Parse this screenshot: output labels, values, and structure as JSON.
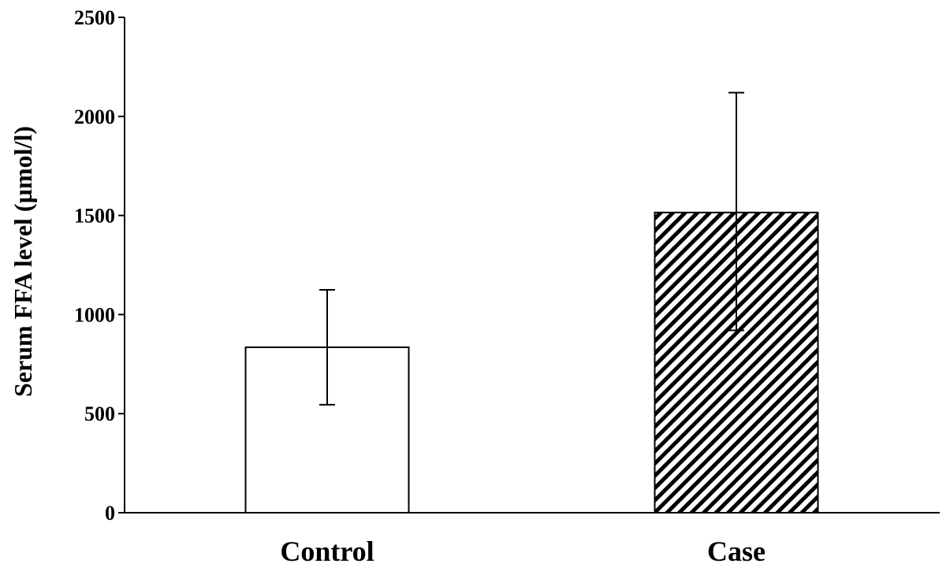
{
  "chart_data": {
    "type": "bar",
    "categories": [
      "Control",
      "Case"
    ],
    "values": [
      835,
      1515
    ],
    "error_bars": [
      {
        "lower": 545,
        "upper": 1125
      },
      {
        "lower": 920,
        "upper": 2120
      }
    ],
    "bar_fills": [
      "none",
      "diagonal-hatch"
    ],
    "title": "",
    "xlabel": "",
    "ylabel": "Serum FFA level (µmol/l)",
    "ylim": [
      0,
      2500
    ],
    "yticks": [
      "0",
      "500",
      "1000",
      "1500",
      "2000",
      "2500"
    ],
    "grid": false,
    "colors": {
      "stroke": "#000000",
      "background": "#ffffff",
      "hatch": "#000000"
    }
  }
}
